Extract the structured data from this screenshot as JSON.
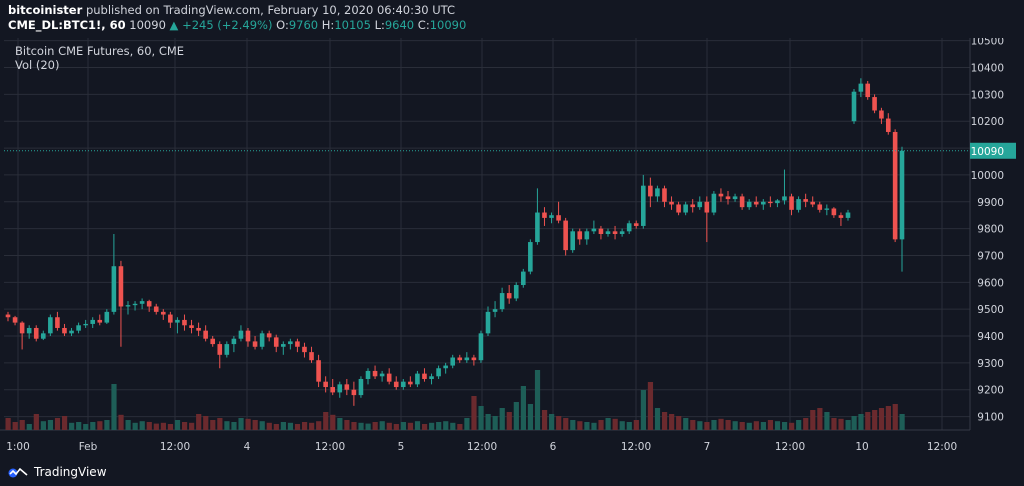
{
  "header": {
    "author": "bitcoinister",
    "published_text": "published on TradingView.com, February 10, 2020 06:40:30 UTC",
    "symbol": "CME_DL:BTC1!, 60",
    "last": "10090",
    "change": "+245 (+2.49%)",
    "o_label": "O:",
    "o_value": "9760",
    "h_label": "H:",
    "h_value": "10105",
    "l_label": "L:",
    "l_value": "9640",
    "c_label": "C:",
    "c_value": "10090"
  },
  "legend": {
    "title": "Bitcoin CME Futures, 60, CME",
    "volume": "Vol (20)"
  },
  "footer": {
    "brand": "TradingView"
  },
  "colors": {
    "up": "#26a69a",
    "down": "#ef5350",
    "background": "#131722",
    "grid": "#2a2e39"
  },
  "chart_data": {
    "type": "candlestick",
    "title": "Bitcoin CME Futures, 60, CME",
    "y_ticks": [
      9100,
      9200,
      9300,
      9400,
      9500,
      9600,
      9700,
      9800,
      9900,
      10000,
      10100,
      10200,
      10300,
      10400,
      10500
    ],
    "ylim": [
      9050,
      10510
    ],
    "last_price": 10090,
    "x_labels": [
      "1:00",
      "Feb",
      "12:00",
      "4",
      "12:00",
      "5",
      "12:00",
      "6",
      "12:00",
      "7",
      "12:00",
      "10",
      "12:00"
    ],
    "grid": true,
    "volume_label": "Vol (20)",
    "candles": [
      [
        9480,
        9490,
        9455,
        9470
      ],
      [
        9470,
        9475,
        9440,
        9450
      ],
      [
        9450,
        9455,
        9350,
        9410
      ],
      [
        9410,
        9440,
        9390,
        9430
      ],
      [
        9430,
        9440,
        9380,
        9390
      ],
      [
        9390,
        9420,
        9385,
        9410
      ],
      [
        9410,
        9480,
        9400,
        9470
      ],
      [
        9470,
        9490,
        9420,
        9430
      ],
      [
        9430,
        9445,
        9400,
        9410
      ],
      [
        9410,
        9430,
        9400,
        9420
      ],
      [
        9420,
        9450,
        9410,
        9440
      ],
      [
        9440,
        9460,
        9430,
        9445
      ],
      [
        9445,
        9470,
        9430,
        9460
      ],
      [
        9460,
        9480,
        9440,
        9450
      ],
      [
        9450,
        9500,
        9445,
        9490
      ],
      [
        9490,
        9780,
        9480,
        9660
      ],
      [
        9660,
        9680,
        9360,
        9510
      ],
      [
        9510,
        9530,
        9480,
        9515
      ],
      [
        9515,
        9530,
        9495,
        9520
      ],
      [
        9520,
        9540,
        9500,
        9530
      ],
      [
        9530,
        9535,
        9490,
        9510
      ],
      [
        9510,
        9520,
        9480,
        9490
      ],
      [
        9490,
        9500,
        9460,
        9480
      ],
      [
        9480,
        9490,
        9430,
        9450
      ],
      [
        9450,
        9470,
        9410,
        9460
      ],
      [
        9460,
        9480,
        9420,
        9440
      ],
      [
        9440,
        9460,
        9410,
        9430
      ],
      [
        9430,
        9450,
        9400,
        9420
      ],
      [
        9420,
        9440,
        9380,
        9390
      ],
      [
        9390,
        9400,
        9360,
        9370
      ],
      [
        9370,
        9380,
        9280,
        9330
      ],
      [
        9330,
        9380,
        9320,
        9370
      ],
      [
        9370,
        9400,
        9340,
        9390
      ],
      [
        9390,
        9440,
        9380,
        9420
      ],
      [
        9420,
        9430,
        9360,
        9380
      ],
      [
        9380,
        9400,
        9350,
        9360
      ],
      [
        9360,
        9420,
        9350,
        9410
      ],
      [
        9410,
        9420,
        9380,
        9395
      ],
      [
        9395,
        9405,
        9340,
        9360
      ],
      [
        9360,
        9380,
        9330,
        9370
      ],
      [
        9370,
        9390,
        9350,
        9380
      ],
      [
        9380,
        9390,
        9340,
        9360
      ],
      [
        9360,
        9375,
        9320,
        9340
      ],
      [
        9340,
        9360,
        9300,
        9310
      ],
      [
        9310,
        9330,
        9210,
        9230
      ],
      [
        9230,
        9250,
        9190,
        9210
      ],
      [
        9210,
        9240,
        9180,
        9190
      ],
      [
        9190,
        9230,
        9170,
        9220
      ],
      [
        9220,
        9240,
        9180,
        9200
      ],
      [
        9200,
        9230,
        9140,
        9180
      ],
      [
        9180,
        9250,
        9170,
        9240
      ],
      [
        9240,
        9280,
        9220,
        9270
      ],
      [
        9270,
        9290,
        9240,
        9250
      ],
      [
        9250,
        9270,
        9230,
        9260
      ],
      [
        9260,
        9280,
        9220,
        9230
      ],
      [
        9230,
        9250,
        9200,
        9210
      ],
      [
        9210,
        9240,
        9200,
        9230
      ],
      [
        9230,
        9250,
        9210,
        9220
      ],
      [
        9220,
        9270,
        9210,
        9260
      ],
      [
        9260,
        9280,
        9230,
        9240
      ],
      [
        9240,
        9260,
        9220,
        9250
      ],
      [
        9250,
        9290,
        9240,
        9280
      ],
      [
        9280,
        9300,
        9260,
        9290
      ],
      [
        9290,
        9330,
        9280,
        9320
      ],
      [
        9320,
        9330,
        9300,
        9310
      ],
      [
        9310,
        9340,
        9300,
        9320
      ],
      [
        9320,
        9330,
        9290,
        9310
      ],
      [
        9310,
        9420,
        9300,
        9410
      ],
      [
        9410,
        9510,
        9400,
        9490
      ],
      [
        9490,
        9530,
        9470,
        9500
      ],
      [
        9500,
        9580,
        9490,
        9560
      ],
      [
        9560,
        9590,
        9520,
        9540
      ],
      [
        9540,
        9600,
        9530,
        9590
      ],
      [
        9590,
        9650,
        9580,
        9640
      ],
      [
        9640,
        9760,
        9630,
        9750
      ],
      [
        9750,
        9950,
        9740,
        9860
      ],
      [
        9860,
        9880,
        9810,
        9840
      ],
      [
        9840,
        9860,
        9820,
        9850
      ],
      [
        9850,
        9900,
        9820,
        9830
      ],
      [
        9830,
        9840,
        9700,
        9720
      ],
      [
        9720,
        9800,
        9710,
        9790
      ],
      [
        9790,
        9800,
        9740,
        9760
      ],
      [
        9760,
        9800,
        9740,
        9790
      ],
      [
        9790,
        9830,
        9780,
        9800
      ],
      [
        9800,
        9810,
        9760,
        9780
      ],
      [
        9780,
        9800,
        9770,
        9790
      ],
      [
        9790,
        9810,
        9760,
        9780
      ],
      [
        9780,
        9800,
        9770,
        9790
      ],
      [
        9790,
        9830,
        9780,
        9820
      ],
      [
        9820,
        9830,
        9800,
        9810
      ],
      [
        9810,
        10000,
        9800,
        9960
      ],
      [
        9960,
        9990,
        9880,
        9920
      ],
      [
        9920,
        9960,
        9900,
        9950
      ],
      [
        9950,
        9960,
        9880,
        9900
      ],
      [
        9900,
        9920,
        9870,
        9890
      ],
      [
        9890,
        9900,
        9850,
        9860
      ],
      [
        9860,
        9900,
        9850,
        9890
      ],
      [
        9890,
        9910,
        9860,
        9880
      ],
      [
        9880,
        9920,
        9870,
        9900
      ],
      [
        9900,
        9920,
        9750,
        9860
      ],
      [
        9860,
        9940,
        9850,
        9930
      ],
      [
        9930,
        9950,
        9900,
        9920
      ],
      [
        9920,
        9940,
        9890,
        9910
      ],
      [
        9910,
        9930,
        9900,
        9920
      ],
      [
        9920,
        9930,
        9870,
        9880
      ],
      [
        9880,
        9910,
        9870,
        9900
      ],
      [
        9900,
        9920,
        9880,
        9890
      ],
      [
        9890,
        9910,
        9870,
        9900
      ],
      [
        9900,
        9920,
        9880,
        9895
      ],
      [
        9895,
        9910,
        9880,
        9905
      ],
      [
        9905,
        10020,
        9890,
        9920
      ],
      [
        9920,
        9930,
        9850,
        9870
      ],
      [
        9870,
        9920,
        9860,
        9910
      ],
      [
        9910,
        9930,
        9880,
        9900
      ],
      [
        9900,
        9920,
        9880,
        9890
      ],
      [
        9890,
        9900,
        9860,
        9870
      ],
      [
        9870,
        9890,
        9850,
        9875
      ],
      [
        9875,
        9880,
        9840,
        9850
      ],
      [
        9850,
        9860,
        9810,
        9840
      ],
      [
        9840,
        9870,
        9830,
        9860
      ],
      [
        10200,
        10320,
        10190,
        10310
      ],
      [
        10310,
        10360,
        10290,
        10340
      ],
      [
        10340,
        10350,
        10280,
        10290
      ],
      [
        10290,
        10300,
        10230,
        10240
      ],
      [
        10240,
        10250,
        10190,
        10210
      ],
      [
        10210,
        10230,
        10150,
        10160
      ],
      [
        10160,
        10170,
        9750,
        9760
      ],
      [
        9760,
        10105,
        9640,
        10090
      ]
    ],
    "volume": [
      30,
      20,
      25,
      15,
      40,
      22,
      25,
      30,
      35,
      18,
      20,
      15,
      20,
      22,
      25,
      115,
      38,
      25,
      18,
      22,
      20,
      16,
      18,
      15,
      25,
      20,
      18,
      40,
      35,
      25,
      30,
      22,
      20,
      30,
      28,
      25,
      22,
      18,
      15,
      20,
      18,
      15,
      20,
      18,
      22,
      45,
      38,
      30,
      25,
      20,
      18,
      16,
      20,
      22,
      18,
      15,
      20,
      18,
      22,
      15,
      18,
      20,
      22,
      18,
      15,
      30,
      85,
      60,
      40,
      35,
      55,
      45,
      70,
      110,
      65,
      150,
      50,
      40,
      35,
      30,
      25,
      22,
      20,
      18,
      25,
      30,
      28,
      22,
      20,
      25,
      100,
      120,
      55,
      45,
      40,
      35,
      30,
      25,
      22,
      20,
      25,
      28,
      25,
      22,
      20,
      18,
      22,
      20,
      25,
      22,
      20,
      18,
      25,
      30,
      50,
      55,
      45,
      30,
      28,
      25,
      35,
      40,
      45,
      50,
      55,
      60,
      65,
      40
    ]
  }
}
